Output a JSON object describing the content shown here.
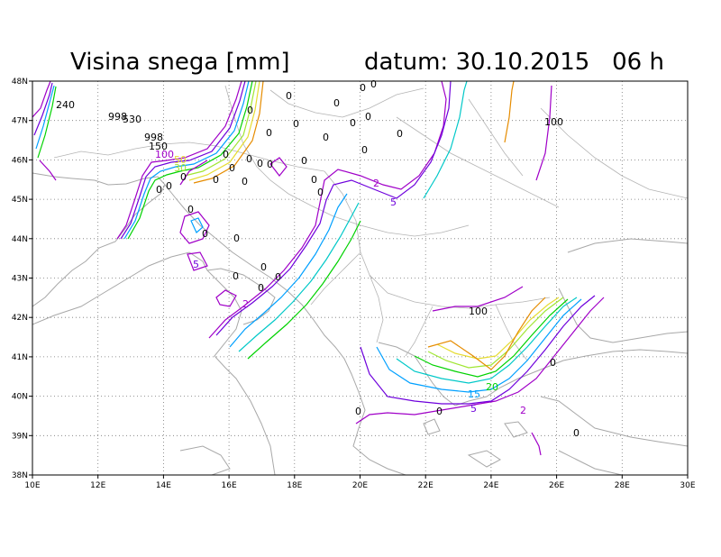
{
  "title": {
    "left": "Visina snega [mm]",
    "right": "datum: 30.10.2015   06 h"
  },
  "axes": {
    "x_labels": [
      "10E",
      "12E",
      "14E",
      "16E",
      "18E",
      "20E",
      "22E",
      "24E",
      "26E",
      "28E",
      "30E"
    ],
    "y_labels": [
      "48N",
      "47N",
      "46N",
      "45N",
      "44N",
      "43N",
      "42N",
      "41N",
      "40N",
      "39N",
      "38N"
    ]
  },
  "contour_levels": [
    "2",
    "5",
    "10",
    "15",
    "20",
    "30",
    "50",
    "100"
  ],
  "colors": {
    "c2": "#a000c8",
    "c5": "#6e00dc",
    "c10": "#00a0ff",
    "c15": "#00c8c8",
    "c20": "#00d200",
    "c30": "#a0e632",
    "c50": "#e6dc32",
    "c100": "#e68c00",
    "land": "#a8a8a8",
    "grid": "#777777"
  },
  "labels": [
    {
      "id": "l240",
      "text": "240"
    },
    {
      "id": "l998a",
      "text": "998"
    },
    {
      "id": "l530",
      "text": "530"
    },
    {
      "id": "l998b",
      "text": "998"
    },
    {
      "id": "l150",
      "text": "150"
    },
    {
      "id": "l100a",
      "text": "100"
    },
    {
      "id": "l50",
      "text": "50"
    },
    {
      "id": "l30",
      "text": "30"
    },
    {
      "id": "l2a",
      "text": "2"
    },
    {
      "id": "l5a",
      "text": "5"
    },
    {
      "id": "l5b",
      "text": "5"
    },
    {
      "id": "l2b",
      "text": "2"
    },
    {
      "id": "l100b",
      "text": "100"
    },
    {
      "id": "l100c",
      "text": "100"
    },
    {
      "id": "l15",
      "text": "15"
    },
    {
      "id": "l20",
      "text": "20"
    },
    {
      "id": "l5c",
      "text": "5"
    },
    {
      "id": "l2c",
      "text": "2"
    }
  ],
  "zero_label": "0"
}
